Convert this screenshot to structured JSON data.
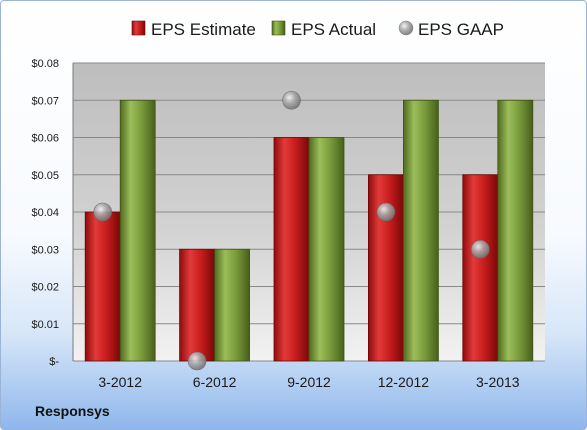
{
  "chart_data": {
    "type": "bar",
    "title": "",
    "xlabel": "",
    "ylabel": "",
    "categories": [
      "3-2012",
      "6-2012",
      "9-2012",
      "12-2012",
      "3-2013"
    ],
    "series": [
      {
        "name": "EPS Estimate",
        "kind": "bar",
        "color": "#cc1f1f",
        "values": [
          0.04,
          0.03,
          0.06,
          0.05,
          0.05
        ]
      },
      {
        "name": "EPS Actual",
        "kind": "bar",
        "color": "#7a9a3a",
        "values": [
          0.07,
          0.03,
          0.06,
          0.07,
          0.07
        ]
      },
      {
        "name": "EPS GAAP",
        "kind": "marker",
        "color": "#9a9a9a",
        "values": [
          0.04,
          0.0,
          0.07,
          0.04,
          0.03
        ]
      }
    ],
    "ylim": [
      0,
      0.08
    ],
    "yticks": [
      0,
      0.01,
      0.02,
      0.03,
      0.04,
      0.05,
      0.06,
      0.07,
      0.08
    ],
    "ytick_labels": [
      "$-",
      "$0.01",
      "$0.02",
      "$0.03",
      "$0.04",
      "$0.05",
      "$0.06",
      "$0.07",
      "$0.08"
    ],
    "grid": true,
    "legend_position": "top"
  },
  "footer": {
    "company": "Responsys"
  }
}
